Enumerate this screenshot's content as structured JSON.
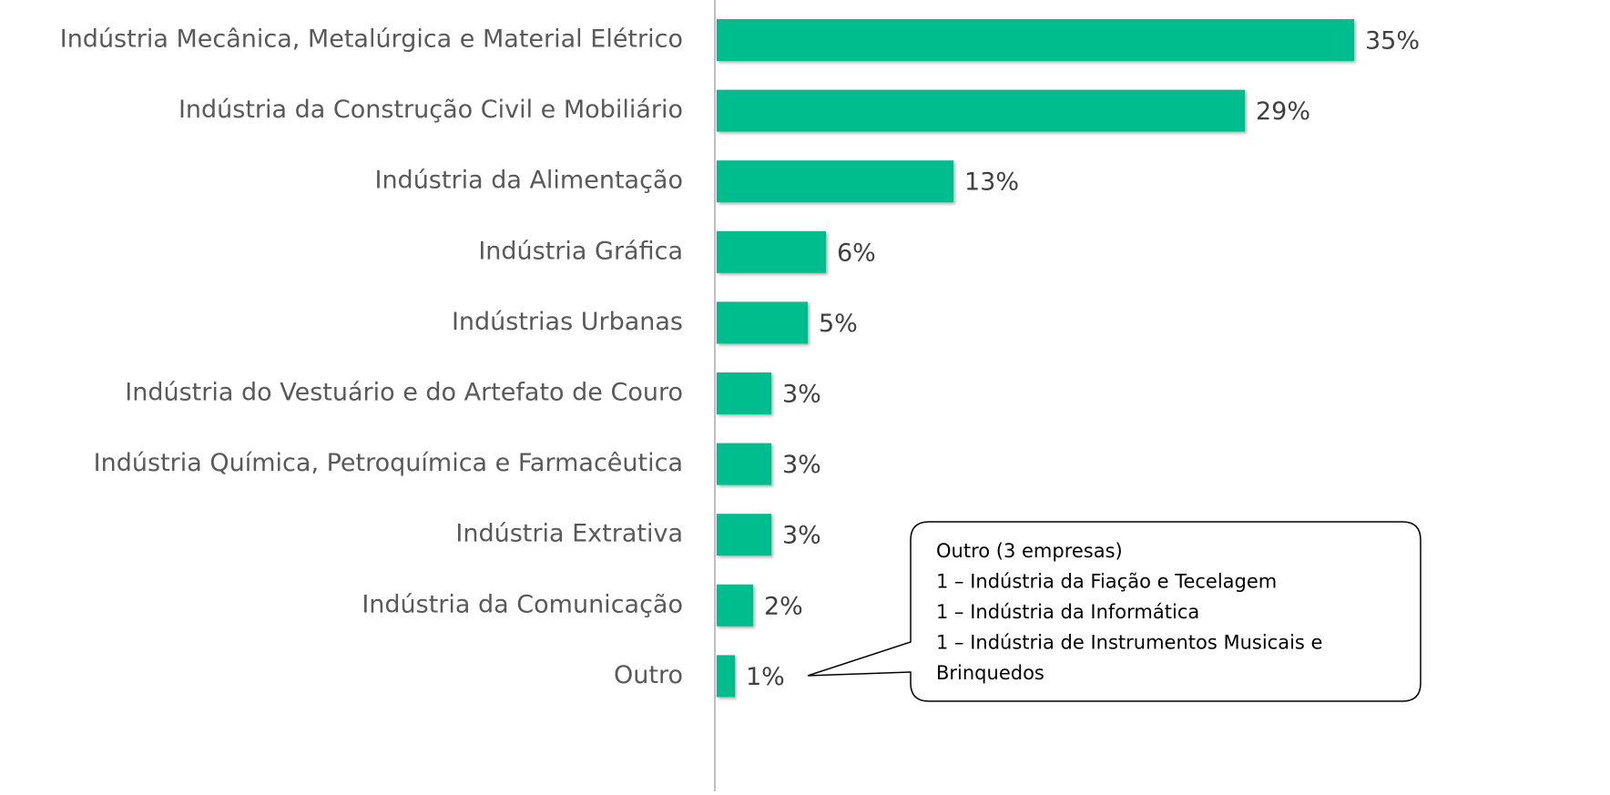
{
  "chart_data": {
    "type": "bar",
    "orientation": "horizontal",
    "categories": [
      "Indústria Mecânica, Metalúrgica e Material Elétrico",
      "Indústria da Construção Civil e Mobiliário",
      "Indústria da Alimentação",
      "Indústria Gráfica",
      "Indústrias Urbanas",
      "Indústria do Vestuário e do Artefato de Couro",
      "Indústria Química, Petroquímica e Farmacêutica",
      "Indústria Extrativa",
      "Indústria da Comunicação",
      "Outro"
    ],
    "values": [
      35,
      29,
      13,
      6,
      5,
      3,
      3,
      3,
      2,
      1
    ],
    "value_labels": [
      "35%",
      "29%",
      "13%",
      "6%",
      "5%",
      "3%",
      "3%",
      "3%",
      "2%",
      "1%"
    ],
    "color": "#00bd8e",
    "xlim": [
      0,
      35
    ],
    "annotation": [
      "Outro (3 empresas)",
      "1 – Indústria da Fiação e Tecelagem",
      "1 – Indústria da Informática",
      "1 – Indústria de Instrumentos Musicais e",
      "Brinquedos"
    ]
  }
}
